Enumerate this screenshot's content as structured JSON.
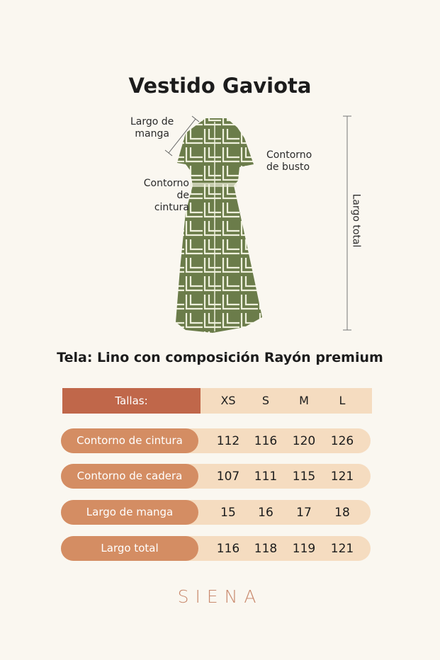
{
  "title": "Vestido Gaviota",
  "diagram_labels": {
    "sleeve": [
      "Largo de",
      "manga"
    ],
    "bust": [
      "Contorno",
      "de busto"
    ],
    "waist": [
      "Contorno",
      "de cintura"
    ],
    "total": "Largo total"
  },
  "fabric": "Tela: Lino con composición Rayón premium",
  "table": {
    "header_label": "Tallas:",
    "sizes": [
      "XS",
      "S",
      "M",
      "L"
    ],
    "rows": [
      {
        "label": "Contorno de cintura",
        "values": [
          "112",
          "116",
          "120",
          "126"
        ]
      },
      {
        "label": "Contorno de cadera",
        "values": [
          "107",
          "111",
          "115",
          "121"
        ]
      },
      {
        "label": "Largo de manga",
        "values": [
          "15",
          "16",
          "17",
          "18"
        ]
      },
      {
        "label": "Largo total",
        "values": [
          "116",
          "118",
          "119",
          "121"
        ]
      }
    ]
  },
  "brand": "SIENA",
  "colors": {
    "background": "#faf7f0",
    "header": "#c0674a",
    "pill": "#d48d63",
    "row": "#f5dcc0",
    "dress": "#6b7c4a",
    "brand": "#c98a6e"
  }
}
